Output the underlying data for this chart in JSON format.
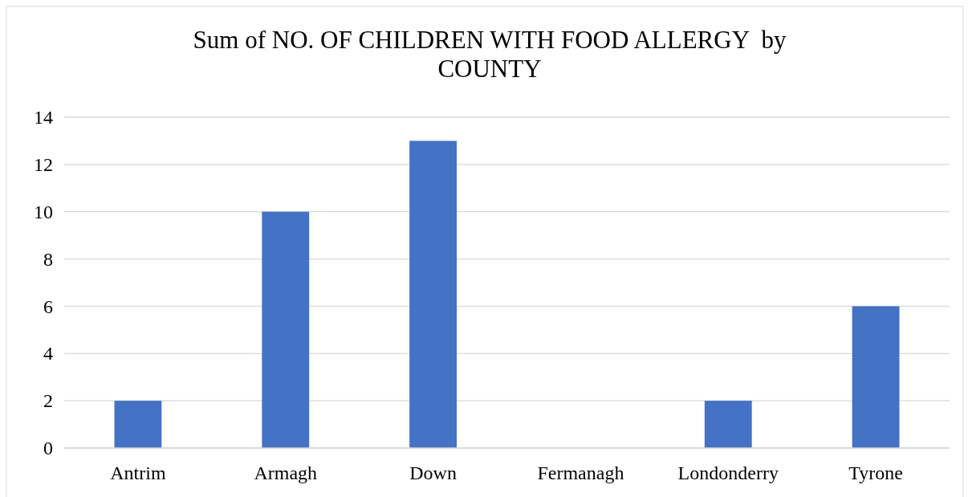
{
  "chart_data": {
    "type": "bar",
    "title": "Sum of NO. OF CHILDREN WITH FOOD ALLERGY  by COUNTY",
    "categories": [
      "Antrim",
      "Armagh",
      "Down",
      "Fermanagh",
      "Londonderry",
      "Tyrone"
    ],
    "values": [
      2,
      10,
      13,
      0,
      2,
      6
    ],
    "color": "#4472c4",
    "ylim": [
      0,
      14
    ],
    "yticks": [
      0,
      2,
      4,
      6,
      8,
      10,
      12,
      14
    ],
    "grid": "y"
  }
}
